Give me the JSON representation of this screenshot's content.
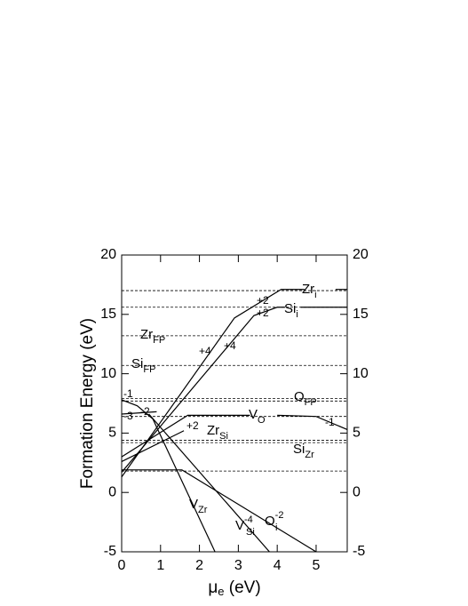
{
  "chart_data": {
    "type": "line",
    "ylabel": "Formation Energy (eV)",
    "xlabel": {
      "text": "μ",
      "sub": "e",
      "after": " (eV)"
    },
    "xlim": [
      0,
      5.8
    ],
    "xticks": [
      0,
      1,
      2,
      3,
      4,
      5
    ],
    "ylim": [
      -5,
      20
    ],
    "yticks": [
      -5,
      0,
      5,
      10,
      15,
      20
    ],
    "y2lim": [
      -5,
      20
    ],
    "y2ticks": [
      -5,
      0,
      5,
      10,
      15,
      20
    ],
    "color": "#000000",
    "levels": [
      17.0,
      15.6,
      13.2,
      10.7,
      7.9,
      7.7,
      6.4,
      4.4,
      4.2,
      1.8
    ],
    "series": [
      {
        "x": [
          0,
          2.9,
          4.1,
          4.7
        ],
        "values": [
          1.3,
          14.7,
          17.1,
          17.1
        ]
      },
      {
        "x": [
          5.5,
          5.8
        ],
        "values": [
          17.1,
          17.1
        ]
      },
      {
        "x": [
          0,
          3.4,
          4.0,
          4.2
        ],
        "values": [
          1.7,
          14.9,
          15.6,
          15.6
        ]
      },
      {
        "x": [
          4.6,
          5.8
        ],
        "values": [
          15.6,
          15.6
        ]
      },
      {
        "x": [
          0,
          1.7,
          3.3
        ],
        "values": [
          3.0,
          6.5,
          6.5
        ]
      },
      {
        "x": [
          4.0,
          5.0,
          5.8
        ],
        "values": [
          6.5,
          6.4,
          5.3
        ]
      },
      {
        "x": [
          0,
          1.6
        ],
        "values": [
          2.6,
          5.2
        ]
      },
      {
        "x": [
          0,
          0.4,
          0.8,
          2.4
        ],
        "values": [
          7.8,
          7.3,
          6.2,
          -5
        ]
      },
      {
        "x": [
          0.7,
          3.8
        ],
        "values": [
          6.6,
          -5
        ]
      },
      {
        "x": [
          0,
          1.55,
          5.0
        ],
        "values": [
          1.9,
          1.9,
          -5
        ]
      },
      {
        "x": [
          0,
          0.9
        ],
        "values": [
          6.6,
          6.8
        ]
      }
    ],
    "annotations": [
      {
        "text": "Zr",
        "sub": "i"
      },
      {
        "text": "Si",
        "sub": "i"
      },
      {
        "text": "+2"
      },
      {
        "text": "+2"
      },
      {
        "text": "+4"
      },
      {
        "text": "+4"
      },
      {
        "text": "Zr",
        "sub": "FP"
      },
      {
        "text": "Si",
        "sub": "FP"
      },
      {
        "text": "O",
        "sub": "FP"
      },
      {
        "text": "V",
        "sub": "O"
      },
      {
        "text": "-1"
      },
      {
        "text": "-1"
      },
      {
        "text": "-3"
      },
      {
        "text": "-2"
      },
      {
        "text": "+2"
      },
      {
        "text": "Zr",
        "sub": "Si"
      },
      {
        "text": "Si",
        "sub": "Zr"
      },
      {
        "text": "V",
        "sub": "Zr"
      },
      {
        "text": "V",
        "sub": "Si",
        "sup": "-4"
      },
      {
        "text": "O",
        "sub": "i",
        "sup": "-2"
      }
    ]
  }
}
